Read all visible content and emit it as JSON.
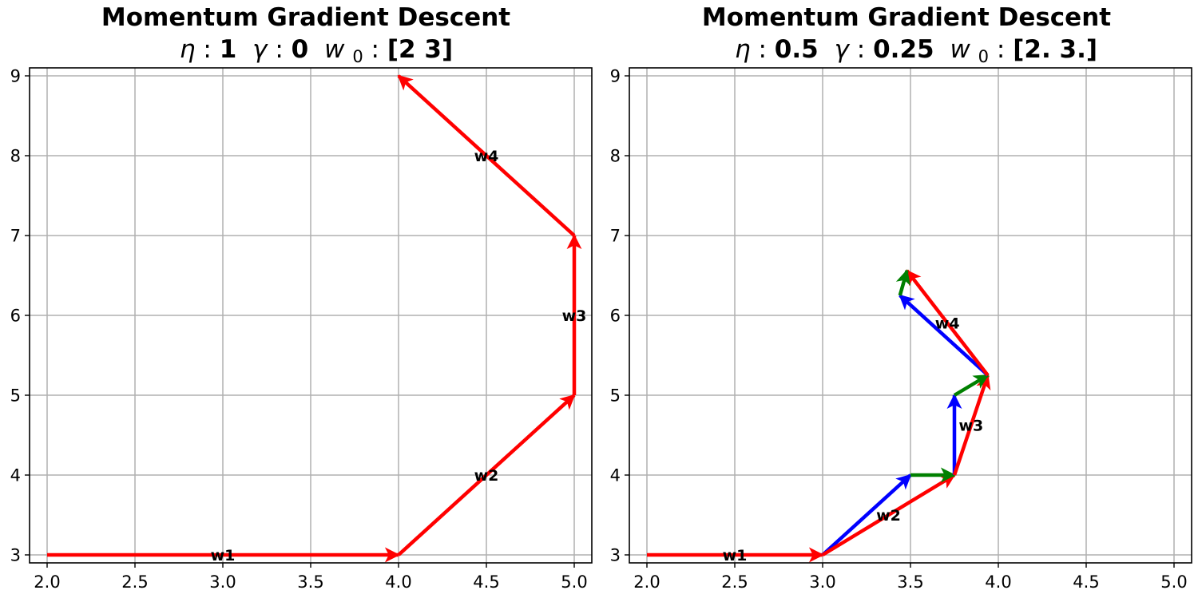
{
  "chart_data": [
    {
      "type": "quiver",
      "title": "Momentum Gradient Descent",
      "subtitle": {
        "eta_symbol": "η",
        "eta_value": "1",
        "gamma_symbol": "γ",
        "gamma_value": "0",
        "w0_symbol": "w",
        "w0_subscript": "0",
        "w0_value": "[2 3]"
      },
      "xlim": [
        1.9,
        5.1
      ],
      "ylim": [
        2.9,
        9.1
      ],
      "xticks": [
        2.0,
        2.5,
        3.0,
        3.5,
        4.0,
        4.5,
        5.0
      ],
      "xtick_labels": [
        "2.0",
        "2.5",
        "3.0",
        "3.5",
        "4.0",
        "4.5",
        "5.0"
      ],
      "yticks": [
        3,
        4,
        5,
        6,
        7,
        8,
        9
      ],
      "ytick_labels": [
        "3",
        "4",
        "5",
        "6",
        "7",
        "8",
        "9"
      ],
      "grid": true,
      "colors": {
        "update": "#ff0000",
        "gradient": "#0000ff",
        "momentum": "#008000"
      },
      "arrows": [
        {
          "x0": 2,
          "y0": 3,
          "x1": 4,
          "y1": 3,
          "color": "update"
        },
        {
          "x0": 4,
          "y0": 3,
          "x1": 5,
          "y1": 5,
          "color": "update"
        },
        {
          "x0": 5,
          "y0": 5,
          "x1": 5,
          "y1": 7,
          "color": "update"
        },
        {
          "x0": 5,
          "y0": 7,
          "x1": 4,
          "y1": 9,
          "color": "update"
        }
      ],
      "labels": [
        {
          "text": "w1",
          "x": 3.0,
          "y": 3.0
        },
        {
          "text": "w2",
          "x": 4.5,
          "y": 4.0
        },
        {
          "text": "w3",
          "x": 5.0,
          "y": 6.0
        },
        {
          "text": "w4",
          "x": 4.5,
          "y": 8.0
        }
      ]
    },
    {
      "type": "quiver",
      "title": "Momentum Gradient Descent",
      "subtitle": {
        "eta_symbol": "η",
        "eta_value": "0.5",
        "gamma_symbol": "γ",
        "gamma_value": "0.25",
        "w0_symbol": "w",
        "w0_subscript": "0",
        "w0_value": "[2. 3.]"
      },
      "xlim": [
        1.9,
        5.1
      ],
      "ylim": [
        2.9,
        9.1
      ],
      "xticks": [
        2.0,
        2.5,
        3.0,
        3.5,
        4.0,
        4.5,
        5.0
      ],
      "xtick_labels": [
        "2.0",
        "2.5",
        "3.0",
        "3.5",
        "4.0",
        "4.5",
        "5.0"
      ],
      "yticks": [
        3,
        4,
        5,
        6,
        7,
        8,
        9
      ],
      "ytick_labels": [
        "3",
        "4",
        "5",
        "6",
        "7",
        "8",
        "9"
      ],
      "grid": true,
      "colors": {
        "update": "#ff0000",
        "gradient": "#0000ff",
        "momentum": "#008000"
      },
      "arrows": [
        {
          "x0": 2,
          "y0": 3,
          "x1": 3,
          "y1": 3,
          "color": "update"
        },
        {
          "x0": 3,
          "y0": 3,
          "x1": 3.5,
          "y1": 4,
          "color": "gradient"
        },
        {
          "x0": 3,
          "y0": 3,
          "x1": 3.75,
          "y1": 4,
          "color": "update"
        },
        {
          "x0": 3.5,
          "y0": 4,
          "x1": 3.75,
          "y1": 4,
          "color": "momentum"
        },
        {
          "x0": 3.75,
          "y0": 4,
          "x1": 3.75,
          "y1": 5,
          "color": "gradient"
        },
        {
          "x0": 3.75,
          "y0": 4,
          "x1": 3.94,
          "y1": 5.25,
          "color": "update"
        },
        {
          "x0": 3.75,
          "y0": 5,
          "x1": 3.94,
          "y1": 5.25,
          "color": "momentum"
        },
        {
          "x0": 3.94,
          "y0": 5.25,
          "x1": 3.44,
          "y1": 6.25,
          "color": "gradient"
        },
        {
          "x0": 3.94,
          "y0": 5.25,
          "x1": 3.48,
          "y1": 6.56,
          "color": "update"
        },
        {
          "x0": 3.44,
          "y0": 6.25,
          "x1": 3.48,
          "y1": 6.56,
          "color": "momentum"
        }
      ],
      "labels": [
        {
          "text": "w1",
          "x": 2.5,
          "y": 3.0
        },
        {
          "text": "w2",
          "x": 3.375,
          "y": 3.5
        },
        {
          "text": "w3",
          "x": 3.845,
          "y": 4.625
        },
        {
          "text": "w4",
          "x": 3.71,
          "y": 5.905
        }
      ]
    }
  ]
}
